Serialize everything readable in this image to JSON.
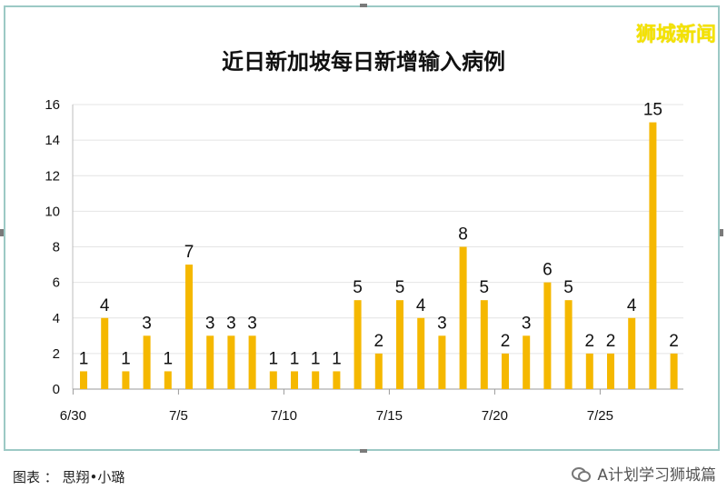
{
  "watermark": "狮城新闻",
  "footer": {
    "credit": "图表 ： 思翔•小璐",
    "account": "A计划学习狮城篇"
  },
  "colors": {
    "bar": "#f5b800",
    "grid": "#e4e4e4",
    "frame": "#9cc9c5",
    "watermark": "#f4e200"
  },
  "chart_data": {
    "type": "bar",
    "title": "近日新加坡每日新增输入病例",
    "xlabel": "",
    "ylabel": "",
    "ylim": [
      0,
      16
    ],
    "yticks": [
      0,
      2,
      4,
      6,
      8,
      10,
      12,
      14,
      16
    ],
    "grid": true,
    "categories": [
      "6/30",
      "7/1",
      "7/2",
      "7/3",
      "7/4",
      "7/5",
      "7/6",
      "7/7",
      "7/8",
      "7/9",
      "7/10",
      "7/11",
      "7/12",
      "7/13",
      "7/14",
      "7/15",
      "7/16",
      "7/17",
      "7/18",
      "7/19",
      "7/20",
      "7/21",
      "7/22",
      "7/23",
      "7/24",
      "7/25",
      "7/26",
      "7/27",
      "7/28"
    ],
    "shown_x_labels": [
      "6/30",
      "7/5",
      "7/10",
      "7/15",
      "7/20",
      "7/25"
    ],
    "values": [
      1,
      4,
      1,
      3,
      1,
      7,
      3,
      3,
      3,
      1,
      1,
      1,
      1,
      5,
      2,
      5,
      4,
      3,
      8,
      5,
      2,
      3,
      6,
      5,
      2,
      2,
      4,
      15,
      2
    ]
  }
}
